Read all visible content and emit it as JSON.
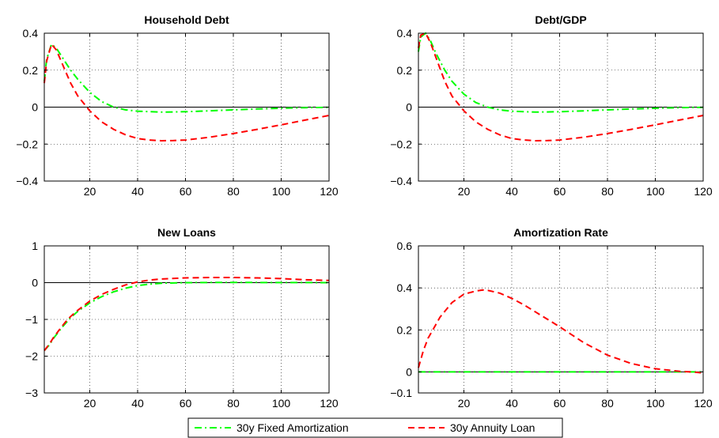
{
  "chart_data": [
    {
      "type": "line",
      "title": "Household Debt",
      "xlim": [
        1,
        120
      ],
      "ylim": [
        -0.4,
        0.4
      ],
      "xticks": [
        20,
        40,
        60,
        80,
        100,
        120
      ],
      "yticks": [
        -0.4,
        -0.2,
        0,
        0.2,
        0.4
      ],
      "grid": true,
      "series": [
        {
          "name": "30y Fixed Amortization",
          "x": [
            1,
            2,
            4,
            6,
            8,
            10,
            12,
            15,
            20,
            25,
            30,
            35,
            40,
            50,
            60,
            70,
            80,
            90,
            100,
            110,
            120
          ],
          "values": [
            0.14,
            0.26,
            0.34,
            0.32,
            0.28,
            0.24,
            0.2,
            0.15,
            0.08,
            0.03,
            0.0,
            -0.015,
            -0.022,
            -0.027,
            -0.025,
            -0.02,
            -0.015,
            -0.01,
            -0.006,
            -0.003,
            -0.001
          ]
        },
        {
          "name": "30y Annuity Loan",
          "x": [
            1,
            2,
            4,
            6,
            8,
            10,
            12,
            15,
            20,
            25,
            30,
            35,
            40,
            45,
            50,
            55,
            60,
            70,
            80,
            90,
            100,
            110,
            120
          ],
          "values": [
            0.13,
            0.25,
            0.34,
            0.31,
            0.25,
            0.19,
            0.13,
            0.06,
            -0.02,
            -0.08,
            -0.12,
            -0.15,
            -0.17,
            -0.178,
            -0.182,
            -0.181,
            -0.178,
            -0.163,
            -0.143,
            -0.12,
            -0.096,
            -0.07,
            -0.045
          ]
        }
      ]
    },
    {
      "type": "line",
      "title": "Debt/GDP",
      "xlim": [
        1,
        120
      ],
      "ylim": [
        -0.4,
        0.4
      ],
      "xticks": [
        20,
        40,
        60,
        80,
        100,
        120
      ],
      "yticks": [
        -0.4,
        -0.2,
        0,
        0.2,
        0.4
      ],
      "grid": true,
      "series": [
        {
          "name": "30y Fixed Amortization",
          "x": [
            1,
            2,
            4,
            6,
            8,
            10,
            12,
            15,
            20,
            25,
            30,
            35,
            40,
            50,
            60,
            70,
            80,
            90,
            100,
            110,
            120
          ],
          "values": [
            0.3,
            0.38,
            0.4,
            0.36,
            0.3,
            0.25,
            0.2,
            0.14,
            0.07,
            0.025,
            0.0,
            -0.015,
            -0.022,
            -0.027,
            -0.025,
            -0.02,
            -0.015,
            -0.01,
            -0.006,
            -0.003,
            -0.001
          ]
        },
        {
          "name": "30y Annuity Loan",
          "x": [
            1,
            2,
            4,
            6,
            8,
            10,
            12,
            15,
            20,
            25,
            30,
            35,
            40,
            45,
            50,
            55,
            60,
            70,
            80,
            90,
            100,
            110,
            120
          ],
          "values": [
            0.32,
            0.39,
            0.4,
            0.35,
            0.28,
            0.21,
            0.14,
            0.06,
            -0.02,
            -0.08,
            -0.12,
            -0.15,
            -0.17,
            -0.178,
            -0.182,
            -0.181,
            -0.178,
            -0.163,
            -0.143,
            -0.12,
            -0.096,
            -0.07,
            -0.045
          ]
        }
      ]
    },
    {
      "type": "line",
      "title": "New Loans",
      "xlim": [
        1,
        120
      ],
      "ylim": [
        -3,
        1
      ],
      "xticks": [
        20,
        40,
        60,
        80,
        100,
        120
      ],
      "yticks": [
        -3,
        -2,
        -1,
        0,
        1
      ],
      "grid": true,
      "series": [
        {
          "name": "30y Fixed Amortization",
          "x": [
            1,
            3,
            5,
            8,
            10,
            12,
            15,
            20,
            25,
            30,
            35,
            40,
            45,
            50,
            60,
            70,
            80,
            90,
            100,
            110,
            120
          ],
          "values": [
            -1.85,
            -1.7,
            -1.5,
            -1.25,
            -1.1,
            -0.95,
            -0.78,
            -0.55,
            -0.38,
            -0.25,
            -0.15,
            -0.08,
            -0.04,
            -0.015,
            0.0,
            0.005,
            0.005,
            0.005,
            0.003,
            0.002,
            0.001
          ]
        },
        {
          "name": "30y Annuity Loan",
          "x": [
            1,
            3,
            5,
            8,
            10,
            12,
            15,
            20,
            25,
            30,
            35,
            40,
            45,
            50,
            60,
            70,
            80,
            90,
            100,
            110,
            120
          ],
          "values": [
            -1.85,
            -1.68,
            -1.48,
            -1.22,
            -1.06,
            -0.92,
            -0.75,
            -0.5,
            -0.32,
            -0.18,
            -0.06,
            0.02,
            0.07,
            0.1,
            0.13,
            0.14,
            0.14,
            0.13,
            0.11,
            0.08,
            0.06
          ]
        }
      ]
    },
    {
      "type": "line",
      "title": "Amortization Rate",
      "xlim": [
        1,
        120
      ],
      "ylim": [
        -0.1,
        0.6
      ],
      "xticks": [
        20,
        40,
        60,
        80,
        100,
        120
      ],
      "yticks": [
        -0.1,
        0,
        0.2,
        0.4,
        0.6
      ],
      "grid": true,
      "series": [
        {
          "name": "30y Fixed Amortization",
          "x": [
            1,
            120
          ],
          "values": [
            0,
            0
          ]
        },
        {
          "name": "30y Annuity Loan",
          "x": [
            1,
            3,
            5,
            8,
            10,
            15,
            20,
            25,
            28,
            30,
            35,
            40,
            45,
            50,
            55,
            60,
            70,
            80,
            90,
            100,
            110,
            115,
            120
          ],
          "values": [
            0.02,
            0.1,
            0.16,
            0.22,
            0.26,
            0.33,
            0.37,
            0.385,
            0.39,
            0.388,
            0.375,
            0.35,
            0.32,
            0.285,
            0.25,
            0.215,
            0.14,
            0.08,
            0.04,
            0.015,
            0.003,
            0.0,
            -0.005
          ]
        }
      ]
    }
  ],
  "legend": {
    "placement": "bottom-center",
    "items": [
      {
        "label": "30y Fixed Amortization",
        "color": "#00ff00",
        "dash": "dash-dot"
      },
      {
        "label": "30y Annuity Loan",
        "color": "#ff0000",
        "dash": "dashed"
      }
    ]
  },
  "colors": {
    "fixed": "#00ff00",
    "annuity": "#ff0000",
    "zero_line": "#000000",
    "grid": "#000000"
  }
}
